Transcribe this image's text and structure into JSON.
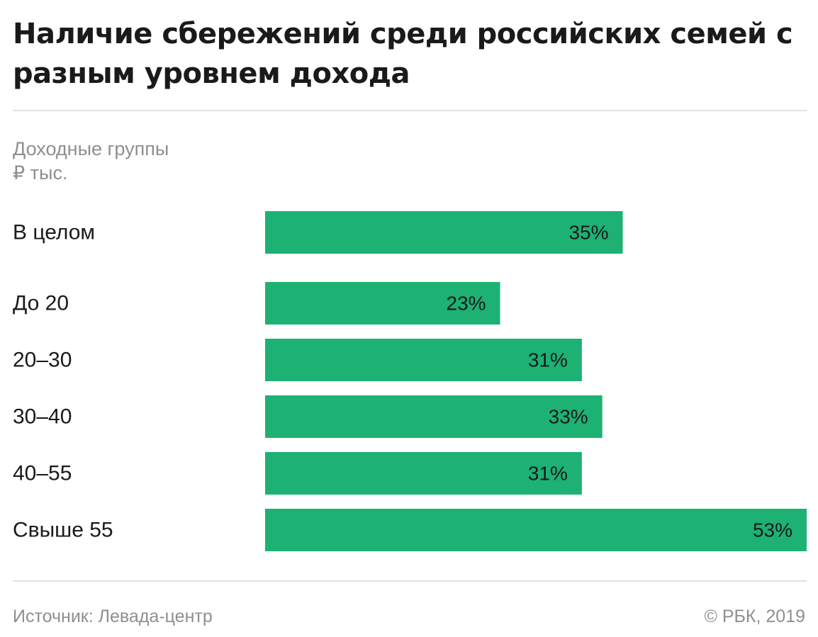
{
  "header": {
    "title": "Наличие сбережений среди российских семей с разным уровнем дохода",
    "subtitle_line1": "Доходные группы",
    "subtitle_line2": "₽ тыс."
  },
  "footer": {
    "source": "Источник: Левада-центр",
    "credit": "© РБК, 2019"
  },
  "colors": {
    "bar": "#1db173",
    "rule": "#e2e2e2",
    "muted_text": "#8f8f8f"
  },
  "chart_data": {
    "type": "bar",
    "orientation": "horizontal",
    "categories": [
      "В целом",
      "До 20",
      "20–30",
      "30–40",
      "40–55",
      "Свыше 55"
    ],
    "values": [
      35,
      23,
      31,
      33,
      31,
      53
    ],
    "value_labels": [
      "35%",
      "23%",
      "31%",
      "33%",
      "31%",
      "53%"
    ],
    "unit": "%",
    "xlim": [
      0,
      53
    ],
    "grid": false,
    "legend": "none"
  }
}
